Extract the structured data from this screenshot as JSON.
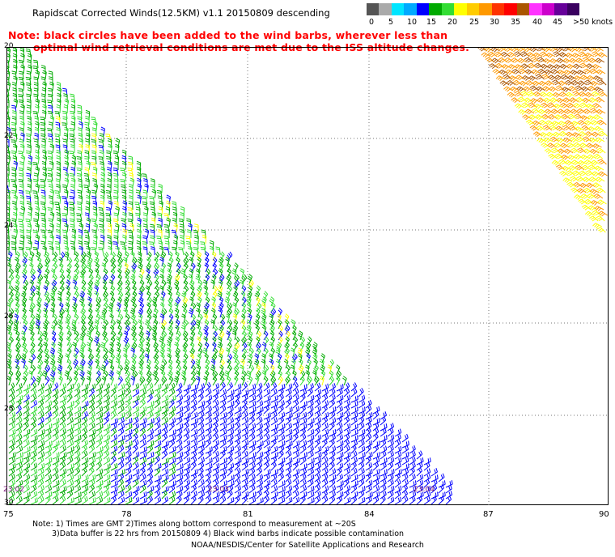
{
  "header": {
    "title": "Rapidscat Corrected Winds(12.5KM) v1.1 20150809 descending",
    "note_line1": "Note: black circles have been added to the wind barbs, wherever less than",
    "note_line2": "optimal wind retrieval conditions are met due to the ISS altitude changes."
  },
  "colorbar": {
    "colors": [
      "#555555",
      "#aaaaaa",
      "#00e5ff",
      "#00aaff",
      "#0000ff",
      "#00aa00",
      "#33dd33",
      "#ffff00",
      "#ffcc00",
      "#ff9900",
      "#ff3300",
      "#ff0000",
      "#aa5500",
      "#ff33ff",
      "#cc00cc",
      "#660099",
      "#3a0060"
    ],
    "labels": [
      "0",
      "5",
      "10",
      "15",
      "20",
      "25",
      "30",
      "35",
      "40",
      "45",
      ">50 knots"
    ]
  },
  "map": {
    "lat_labels": [
      "20",
      "22",
      "24",
      "26",
      "28",
      "30"
    ],
    "lon_labels": [
      "75",
      "78",
      "81",
      "84",
      "87",
      "90"
    ],
    "time_labels": [
      "23:02",
      "23:03",
      "23:04"
    ],
    "grid": "dotted",
    "wind_speed_colors": {
      "low": "#0000ff",
      "mid": "#00aa00",
      "light_mid": "#33dd33",
      "high": "#ffff00",
      "orange": "#ff9900",
      "dark_orange": "#aa5500"
    }
  },
  "footer": {
    "note_line1": "Note: 1) Times are GMT 2)Times along bottom correspond to measurement at ~20S",
    "note_line2": "3)Data buffer is 22 hrs from 20150809 4) Black wind barbs indicate possible contamination",
    "credit": "NOAA/NESDIS/Center for Satellite Applications and Research"
  }
}
